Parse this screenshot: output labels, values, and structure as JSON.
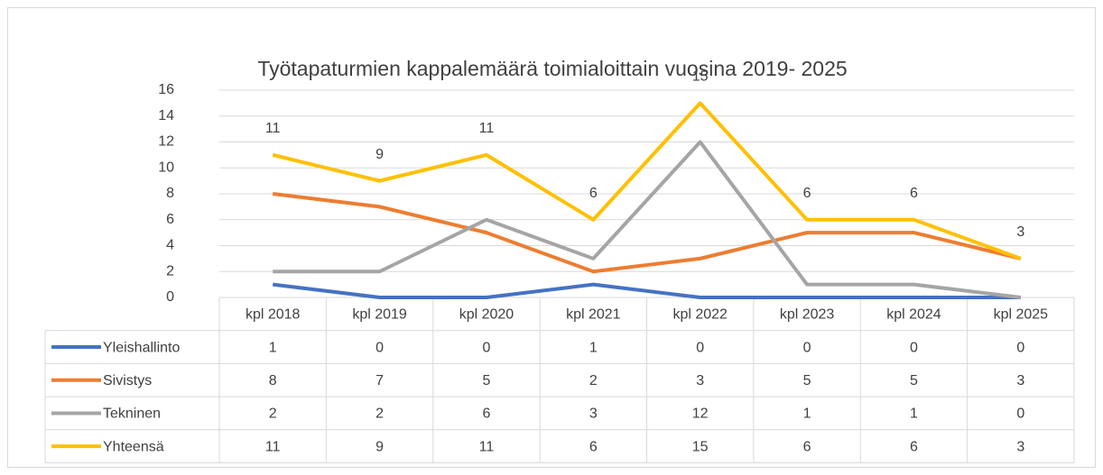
{
  "chart_data": {
    "type": "line",
    "title": "Työtapaturmien kappalemäärä toimialoittain vuosina 2019- 2025",
    "categories": [
      "kpl 2018",
      "kpl 2019",
      "kpl 2020",
      "kpl 2021",
      "kpl 2022",
      "kpl 2023",
      "kpl 2024",
      "kpl 2025"
    ],
    "series": [
      {
        "name": "Yleishallinto",
        "color": "#4472c4",
        "values": [
          1,
          0,
          0,
          1,
          0,
          0,
          0,
          0
        ]
      },
      {
        "name": "Sivistys",
        "color": "#ed7d31",
        "values": [
          8,
          7,
          5,
          2,
          3,
          5,
          5,
          3
        ]
      },
      {
        "name": "Tekninen",
        "color": "#a5a5a5",
        "values": [
          2,
          2,
          6,
          3,
          12,
          1,
          1,
          0
        ]
      },
      {
        "name": "Yhteensä",
        "color": "#ffc000",
        "values": [
          11,
          9,
          11,
          6,
          15,
          6,
          6,
          3
        ],
        "data_labels": true
      }
    ],
    "ylim": [
      0,
      16
    ],
    "yticks": [
      0,
      2,
      4,
      6,
      8,
      10,
      12,
      14,
      16
    ],
    "grid": true,
    "data_table": true
  }
}
